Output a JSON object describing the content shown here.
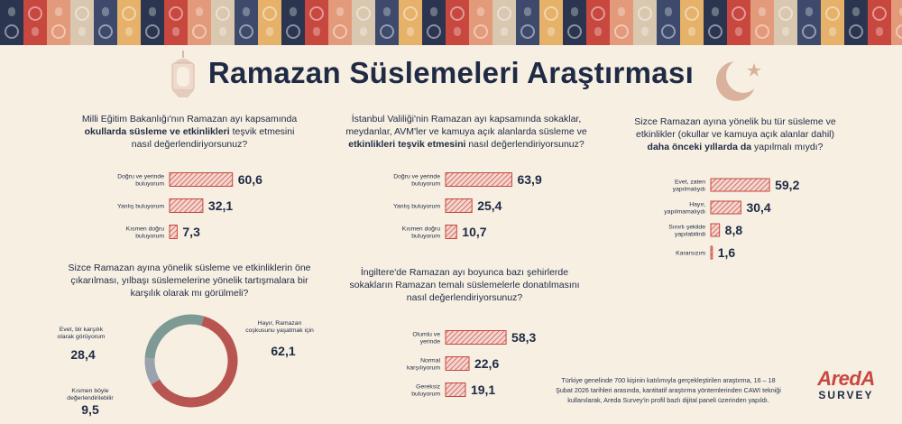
{
  "header": {
    "title": "Ramazan Süslemeleri Araştırması"
  },
  "colors": {
    "bar": "#c8473f",
    "bar_fill": "#f3d6cf",
    "navy": "#1f2a44",
    "donut_main": "#b85550",
    "donut_mid": "#7d9a95",
    "donut_small": "#9aa3ad"
  },
  "questions": {
    "q1": {
      "line1": "Milli Eğitim Bakanlığı'nın Ramazan ayı kapsamında",
      "line2_bold": "okullarda süsleme ve etkinlikleri",
      "line2_rest": " teşvik etmesini",
      "line3": "nasıl değerlendiriyorsunuz?"
    },
    "q2": {
      "line1": "İstanbul Valiliği'nin Ramazan ayı kapsamında sokaklar,",
      "line2": "meydanlar, AVM'ler ve kamuya açık alanlarda süsleme ve",
      "line3_bold": "etkinlikleri teşvik etmesini",
      "line3_rest": " nasıl değerlendiriyorsunuz?"
    },
    "q3": {
      "line1": "Sizce Ramazan ayına yönelik bu tür süsleme ve",
      "line2": "etkinlikler (okullar ve kamuya açık alanlar dahil)",
      "line3_bold": "daha önceki yıllarda da",
      "line3_rest": " yapılmalı mıydı?"
    },
    "q4": {
      "line1": "Sizce Ramazan ayına yönelik süsleme ve etkinliklerin öne",
      "line2": "çıkarılması, yılbaşı süslemelerine yönelik tartışmalara bir",
      "line3": "karşılık olarak mı görülmeli?"
    },
    "q5": {
      "line1": "İngiltere'de Ramazan ayı boyunca bazı şehirlerde",
      "line2": "sokakların Ramazan temalı süslemelerle donatılmasını",
      "line3": "nasıl değerlendiriyorsunuz?"
    }
  },
  "chart_data": [
    {
      "type": "bar",
      "id": "q1",
      "categories": [
        [
          "Doğru ve yerinde",
          "buluyorum"
        ],
        [
          "Yanlış buluyorum"
        ],
        [
          "Kısmen doğru",
          "buluyorum"
        ]
      ],
      "values": [
        60.6,
        32.1,
        7.3
      ],
      "value_labels": [
        "60,6",
        "32,1",
        "7,3"
      ]
    },
    {
      "type": "bar",
      "id": "q2",
      "categories": [
        [
          "Doğru ve yerinde",
          "buluyorum"
        ],
        [
          "Yanlış buluyorum"
        ],
        [
          "Kısmen doğru",
          "buluyorum"
        ]
      ],
      "values": [
        63.9,
        25.4,
        10.7
      ],
      "value_labels": [
        "63,9",
        "25,4",
        "10,7"
      ]
    },
    {
      "type": "bar",
      "id": "q3",
      "categories": [
        [
          "Evet, zaten",
          "yapılmalıydı"
        ],
        [
          "Hayır,",
          "yapılmamalıydı"
        ],
        [
          "Sınırlı şekilde",
          "yapılabilirdi"
        ],
        [
          "Kararsızım"
        ]
      ],
      "values": [
        59.2,
        30.4,
        8.8,
        1.6
      ],
      "value_labels": [
        "59,2",
        "30,4",
        "8,8",
        "1,6"
      ]
    },
    {
      "type": "pie",
      "id": "q4",
      "slices": [
        {
          "label": [
            "Hayır, Ramazan",
            "coşkusunu yaşatmak için"
          ],
          "value": 62.1,
          "value_label": "62,1"
        },
        {
          "label": [
            "Kısmen böyle",
            "değerlendirilebilir"
          ],
          "value": 9.5,
          "value_label": "9,5"
        },
        {
          "label": [
            "Evet, bir karşılık",
            "olarak görüyorum"
          ],
          "value": 28.4,
          "value_label": "28,4"
        }
      ]
    },
    {
      "type": "bar",
      "id": "q5",
      "categories": [
        [
          "Olumlu ve",
          "yerinde"
        ],
        [
          "Normal",
          "karşılıyorum"
        ],
        [
          "Gereksiz",
          "buluyorum"
        ]
      ],
      "values": [
        58.3,
        22.6,
        19.1
      ],
      "value_labels": [
        "58,3",
        "22,6",
        "19,1"
      ]
    }
  ],
  "footer": {
    "line1": "Türkiye genelinde 700 kişinin katılımıyla gerçekleştirilen araştırma, 16 – 18",
    "line2": "Şubat 2026 tarihleri arasında, kantitatif araştırma yöntemlerinden CAWI tekniği",
    "line3": "kullanılarak, Areda Survey'in profil bazlı dijital paneli üzerinden yapıldı.",
    "logo_top": "AredA",
    "logo_bottom": "SURVEY"
  }
}
